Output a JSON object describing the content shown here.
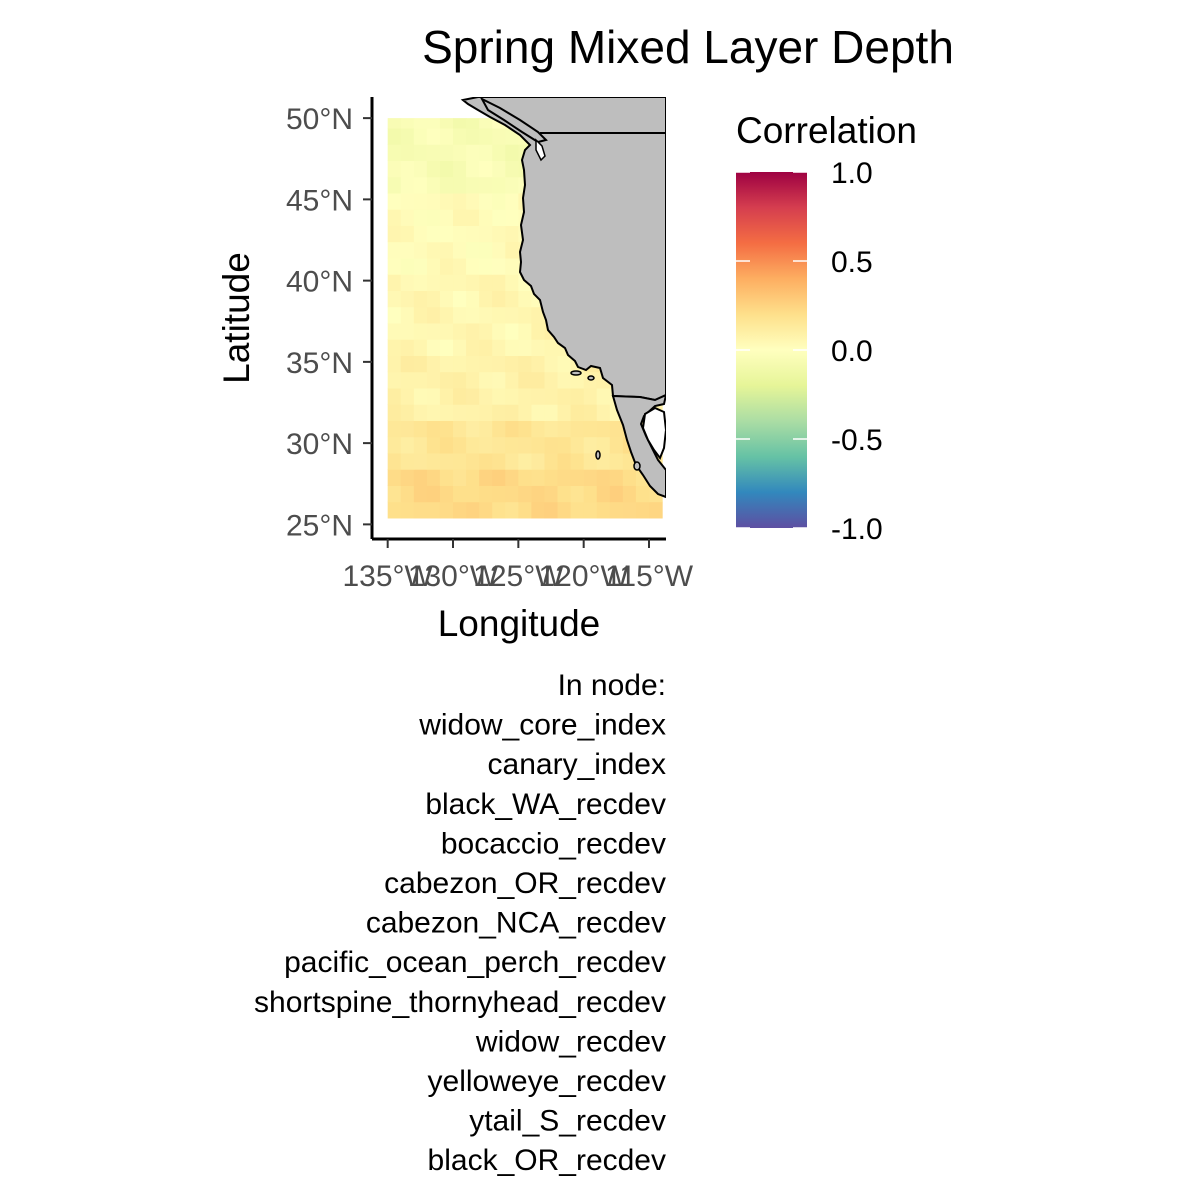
{
  "figure": {
    "title": "Spring Mixed Layer Depth",
    "xlabel": "Longitude",
    "ylabel": "Latitude"
  },
  "axes": {
    "y_ticks": [
      "50°N",
      "45°N",
      "40°N",
      "35°N",
      "30°N",
      "25°N"
    ],
    "x_ticks": [
      "135°W",
      "130°W",
      "125°W",
      "120°W",
      "115°W"
    ]
  },
  "legend": {
    "title": "Correlation",
    "labels": [
      "1.0",
      "0.5",
      "0.0",
      "-0.5",
      "-1.0"
    ],
    "colors": [
      "#9E0142",
      "#D53E4F",
      "#F46D43",
      "#FDAE61",
      "#FEE08B",
      "#FFFFBF",
      "#E6F598",
      "#ABDDA4",
      "#66C2A5",
      "#3288BD",
      "#5E4FA2"
    ]
  },
  "node_info": {
    "header": "In node:",
    "items": [
      "widow_core_index",
      "canary_index",
      "black_WA_recdev",
      "bocaccio_recdev",
      "cabezon_OR_recdev",
      "cabezon_NCA_recdev",
      "pacific_ocean_perch_recdev",
      "shortspine_thornyhead_recdev",
      "widow_recdev",
      "yelloweye_recdev",
      "ytail_S_recdev",
      "black_OR_recdev"
    ]
  },
  "chart_data": {
    "type": "heatmap",
    "title": "Spring Mixed Layer Depth",
    "xlabel": "Longitude",
    "ylabel": "Latitude",
    "x_ticks": [
      "135°W",
      "130°W",
      "125°W",
      "120°W",
      "115°W"
    ],
    "y_ticks": [
      "50°N",
      "45°N",
      "40°N",
      "35°N",
      "30°N",
      "25°N"
    ],
    "xlim": [
      -136.2,
      -113.7
    ],
    "ylim": [
      24.1,
      51.3
    ],
    "color_scale": {
      "name": "Spectral",
      "range": [
        -1.0,
        1.0
      ]
    },
    "grid": {
      "lon_start": -135,
      "lon_end": -114,
      "lat_start": 25.4,
      "lat_end": 50,
      "lon_step": 1,
      "lat_step": 1
    },
    "land_color": "#BEBEBE",
    "correlation_field": [
      {
        "lat_min": 25.4,
        "lat_max": 28,
        "value": 0.22
      },
      {
        "lat_min": 28,
        "lat_max": 31,
        "value": 0.16
      },
      {
        "lat_min": 31,
        "lat_max": 35,
        "value": 0.08
      },
      {
        "lat_min": 35,
        "lat_max": 40,
        "value": 0.05
      },
      {
        "lat_min": 40,
        "lat_max": 45,
        "value": 0.02
      },
      {
        "lat_min": 45,
        "lat_max": 50,
        "value": -0.05
      }
    ],
    "legend_position": "right"
  }
}
